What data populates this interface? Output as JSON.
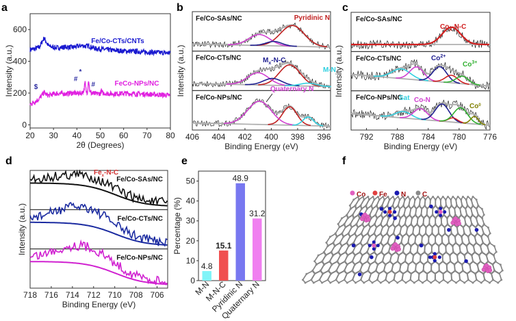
{
  "chart_data": [
    {
      "panel": "a",
      "type": "line",
      "xlabel": "2θ (Degrees)",
      "ylabel": "Intensity (a.u.)",
      "xlim": [
        20,
        80
      ],
      "ylim": [
        -20,
        700
      ],
      "xticks": [
        20,
        30,
        40,
        50,
        60,
        70,
        80
      ],
      "yticks": [
        0,
        200,
        400,
        600
      ],
      "series": [
        {
          "name": "Fe/Co-CTs/CNTs",
          "color": "#1a1ad0",
          "x": [
            20,
            22,
            24,
            25,
            26,
            27,
            28,
            30,
            32,
            35,
            38,
            40,
            42,
            44,
            45,
            46,
            48,
            50,
            55,
            60,
            65,
            70,
            75,
            80
          ],
          "y": [
            475,
            478,
            490,
            520,
            548,
            520,
            495,
            488,
            485,
            490,
            488,
            492,
            500,
            495,
            500,
            490,
            480,
            478,
            470,
            465,
            462,
            458,
            455,
            452
          ]
        },
        {
          "name": "FeCo-NPs/NC",
          "color": "#e020e0",
          "x": [
            20,
            22,
            24,
            25,
            26,
            27,
            28,
            30,
            32,
            35,
            38,
            40,
            42,
            43,
            43.5,
            44,
            44.5,
            45,
            45.5,
            46,
            48,
            50,
            50.5,
            51,
            55,
            60,
            65,
            70,
            75,
            80
          ],
          "y": [
            130,
            145,
            165,
            185,
            205,
            190,
            185,
            195,
            198,
            195,
            200,
            198,
            200,
            215,
            265,
            210,
            205,
            290,
            215,
            200,
            195,
            198,
            215,
            200,
            195,
            198,
            195,
            193,
            190,
            185
          ]
        }
      ],
      "annotations": [
        {
          "text": "$",
          "x": 22.5,
          "y": 225,
          "color": "#2a2aa0"
        },
        {
          "text": "#",
          "x": 39.5,
          "y": 275,
          "color": "#2a2aa0"
        },
        {
          "text": "*",
          "x": 41.5,
          "y": 320,
          "color": "#2a2aa0"
        },
        {
          "text": "#",
          "x": 47,
          "y": 240,
          "color": "#2a2aa0"
        }
      ]
    },
    {
      "panel": "b",
      "type": "line",
      "xlabel": "Binding Energy (eV)",
      "ylabel": "Intensity (a.u.)",
      "xlim": [
        406,
        395.5
      ],
      "xticks": [
        406,
        404,
        402,
        400,
        398,
        396
      ],
      "subplots": [
        {
          "sample": "Fe/Co-SAs/NC",
          "peaks": [
            {
              "name": "Pyridinic N",
              "center": 398.4,
              "height": 0.85,
              "width": 0.9,
              "color": "#c02020"
            },
            {
              "name": "Quaternary N",
              "center": 400.9,
              "height": 0.45,
              "width": 0.8,
              "color": "#d040d0"
            },
            {
              "name": "Mx-N-C",
              "center": 399.8,
              "height": 0.18,
              "width": 0.6,
              "color": "#202090"
            }
          ]
        },
        {
          "sample": "Fe/Co-CTs/NC",
          "peaks": [
            {
              "name": "Pyridinic N",
              "center": 398.6,
              "height": 0.85,
              "width": 0.8,
              "color": "#c02020"
            },
            {
              "name": "Quaternary N",
              "center": 401.0,
              "height": 0.5,
              "width": 0.8,
              "color": "#d040d0"
            },
            {
              "name": "Mx-N-C",
              "center": 399.9,
              "height": 0.28,
              "width": 0.7,
              "color": "#202090"
            },
            {
              "name": "M-N",
              "center": 397.2,
              "height": 0.12,
              "width": 0.6,
              "color": "#30d0e0"
            }
          ]
        },
        {
          "sample": "Fe/Co-NPs/NC",
          "peaks": [
            {
              "name": "Pyridinic N",
              "center": 398.6,
              "height": 0.75,
              "width": 0.55,
              "color": "#c02020"
            },
            {
              "name": "Quaternary N",
              "center": 400.9,
              "height": 0.95,
              "width": 0.9,
              "color": "#d040d0"
            },
            {
              "name": "M-N",
              "center": 397.2,
              "height": 0.35,
              "width": 0.4,
              "color": "#30d0e0"
            }
          ]
        }
      ],
      "annotations": [
        {
          "text": "Pyridinic N",
          "color": "#c02020"
        },
        {
          "text": "Mx-N-C",
          "color": "#202090"
        },
        {
          "text": "M-N",
          "color": "#30d0e0"
        },
        {
          "text": "Quaternary N",
          "color": "#d040d0"
        }
      ]
    },
    {
      "panel": "c",
      "type": "line",
      "xlabel": "Binding Energy (eV)",
      "ylabel": "Intensity (a.u.)",
      "xlim": [
        794,
        776
      ],
      "xticks": [
        792,
        788,
        784,
        780,
        776
      ],
      "subplots": [
        {
          "sample": "Fe/Co-SAs/NC",
          "peaks": [
            {
              "name": "Cox-N-C",
              "center": 781.0,
              "height": 0.8,
              "width": 1.2,
              "color": "#d02020"
            }
          ]
        },
        {
          "sample": "Fe/Co-CTs/NC",
          "peaks": [
            {
              "name": "Sat",
              "center": 787.5,
              "height": 0.45,
              "width": 1.2,
              "color": "#30d0e0"
            },
            {
              "name": "Co-N",
              "center": 785.5,
              "height": 0.6,
              "width": 0.9,
              "color": "#d040d0"
            },
            {
              "name": "Co2+",
              "center": 782.5,
              "height": 0.7,
              "width": 0.9,
              "color": "#202090"
            },
            {
              "name": "red",
              "center": 781.0,
              "height": 0.35,
              "width": 0.8,
              "color": "#d02020"
            },
            {
              "name": "Co3+",
              "center": 779.6,
              "height": 0.35,
              "width": 0.8,
              "color": "#30b030"
            }
          ]
        },
        {
          "sample": "Fe/Co-NPs/NC",
          "peaks": [
            {
              "name": "Sat",
              "center": 787.2,
              "height": 0.3,
              "width": 1.0,
              "color": "#30d0e0"
            },
            {
              "name": "Co-N",
              "center": 785.0,
              "height": 0.5,
              "width": 0.9,
              "color": "#d040d0"
            },
            {
              "name": "Co2+",
              "center": 782.2,
              "height": 0.8,
              "width": 0.9,
              "color": "#202090"
            },
            {
              "name": "red",
              "center": 780.8,
              "height": 0.2,
              "width": 0.6,
              "color": "#d02020"
            },
            {
              "name": "Co3+",
              "center": 779.8,
              "height": 0.7,
              "width": 0.9,
              "color": "#30b030"
            },
            {
              "name": "Co0",
              "center": 778.0,
              "height": 0.35,
              "width": 0.5,
              "color": "#808000"
            }
          ]
        }
      ],
      "annotations": [
        {
          "text": "Cox-N-C",
          "color": "#d02020"
        },
        {
          "text": "Co2+",
          "color": "#202090"
        },
        {
          "text": "Co3+",
          "color": "#30b030"
        },
        {
          "text": "Sat",
          "color": "#30d0e0"
        },
        {
          "text": "Co-N",
          "color": "#d040d0"
        },
        {
          "text": "Co0",
          "color": "#808000"
        }
      ]
    },
    {
      "panel": "d",
      "type": "line",
      "xlabel": "Binding Energy (eV)",
      "ylabel": "Intensity (a.u.)",
      "xlim": [
        718,
        705
      ],
      "xticks": [
        718,
        716,
        714,
        712,
        710,
        708,
        706
      ],
      "subplots": [
        {
          "sample": "Fe/Co-SAs/NC",
          "color": "#111111",
          "annotation": "Fex-N-C"
        },
        {
          "sample": "Fe/Co-CTs/NC",
          "color": "#1a2aa0"
        },
        {
          "sample": "Fe/Co-NPs/NC",
          "color": "#d020d0"
        }
      ]
    },
    {
      "panel": "e",
      "type": "bar",
      "title": "",
      "xlabel": "",
      "ylabel": "Percentage (%)",
      "ylim": [
        0,
        55
      ],
      "yticks": [
        0,
        10,
        20,
        30,
        40,
        50
      ],
      "categories": [
        "M-N",
        "M-N-C",
        "Pyridinic N",
        "Quaternary N"
      ],
      "values": [
        4.8,
        15.1,
        48.9,
        31.2
      ],
      "value_labels": [
        "4.8",
        "15.1",
        "48.9",
        "31.2"
      ],
      "colors": [
        "#80f4f8",
        "#f05050",
        "#7878f0",
        "#f080f0"
      ],
      "label_colors": [
        "#222222",
        "#d03030",
        "#222222",
        "#222222"
      ]
    }
  ],
  "panels": {
    "a": "a",
    "b": "b",
    "c": "c",
    "d": "d",
    "e": "e",
    "f": "f"
  },
  "panel_f": {
    "legend": [
      {
        "label": "Co",
        "color": "#e060c0"
      },
      {
        "label": "Fe",
        "color": "#e04040"
      },
      {
        "label": "N",
        "color": "#1a1ab0"
      },
      {
        "label": "C",
        "color": "#8a8a8a"
      }
    ],
    "legend_text_color": "#a01010"
  }
}
